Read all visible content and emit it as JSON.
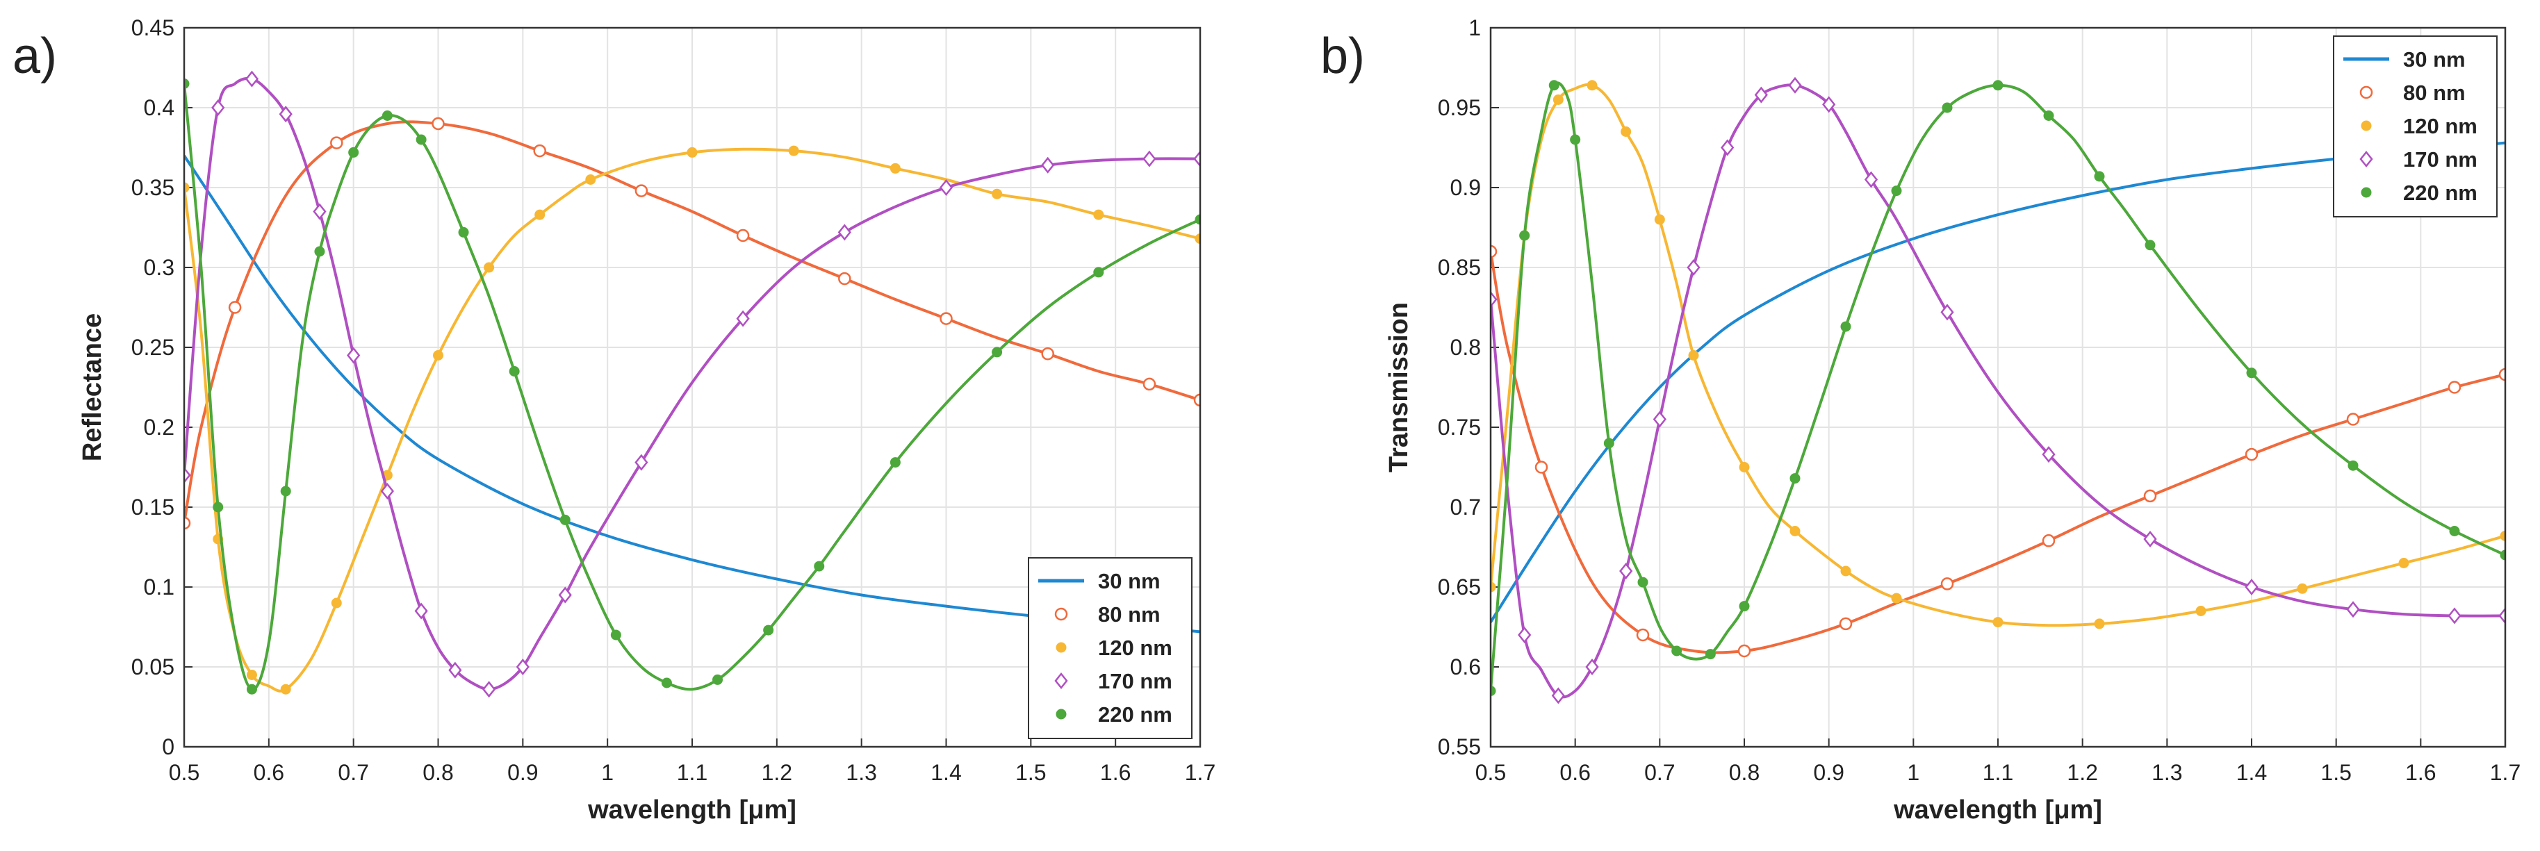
{
  "chart_data": [
    {
      "panel_label": "a)",
      "type": "line",
      "title": "",
      "xlabel": "wavelength [μm]",
      "ylabel": "Reflectance",
      "xlim": [
        0.5,
        1.7
      ],
      "ylim": [
        0,
        0.45
      ],
      "xticks": [
        "0.5",
        "0.6",
        "0.7",
        "0.8",
        "0.9",
        "1",
        "1.1",
        "1.2",
        "1.3",
        "1.4",
        "1.5",
        "1.6",
        "1.7"
      ],
      "yticks": [
        "0",
        "0.05",
        "0.1",
        "0.15",
        "0.2",
        "0.25",
        "0.3",
        "0.35",
        "0.4",
        "0.45"
      ],
      "grid": true,
      "legend_position": "bottom-right",
      "series": [
        {
          "name": "30 nm",
          "color": "#1e88d2",
          "marker": "none",
          "x": [
            0.5,
            0.55,
            0.6,
            0.65,
            0.7,
            0.75,
            0.8,
            0.9,
            1.0,
            1.1,
            1.2,
            1.3,
            1.4,
            1.5,
            1.6,
            1.7
          ],
          "y": [
            0.37,
            0.33,
            0.29,
            0.255,
            0.225,
            0.2,
            0.18,
            0.152,
            0.132,
            0.117,
            0.105,
            0.095,
            0.088,
            0.082,
            0.077,
            0.072
          ]
        },
        {
          "name": "80 nm",
          "color": "#f06a3c",
          "marker": "circle",
          "x": [
            0.5,
            0.52,
            0.56,
            0.62,
            0.68,
            0.74,
            0.8,
            0.86,
            0.92,
            0.98,
            1.04,
            1.1,
            1.16,
            1.22,
            1.28,
            1.34,
            1.4,
            1.46,
            1.52,
            1.58,
            1.64,
            1.7
          ],
          "y": [
            0.14,
            0.2,
            0.275,
            0.345,
            0.378,
            0.39,
            0.39,
            0.384,
            0.373,
            0.362,
            0.348,
            0.335,
            0.32,
            0.306,
            0.293,
            0.28,
            0.268,
            0.256,
            0.246,
            0.235,
            0.227,
            0.217
          ]
        },
        {
          "name": "120 nm",
          "color": "#f7b733",
          "marker": "dot",
          "x": [
            0.5,
            0.52,
            0.54,
            0.56,
            0.58,
            0.6,
            0.62,
            0.65,
            0.68,
            0.71,
            0.74,
            0.77,
            0.8,
            0.83,
            0.86,
            0.89,
            0.92,
            0.95,
            0.98,
            1.04,
            1.1,
            1.16,
            1.22,
            1.28,
            1.34,
            1.4,
            1.46,
            1.52,
            1.58,
            1.64,
            1.7
          ],
          "y": [
            0.35,
            0.26,
            0.13,
            0.07,
            0.045,
            0.038,
            0.036,
            0.055,
            0.09,
            0.13,
            0.17,
            0.21,
            0.245,
            0.275,
            0.3,
            0.32,
            0.333,
            0.345,
            0.355,
            0.366,
            0.372,
            0.374,
            0.373,
            0.369,
            0.362,
            0.355,
            0.346,
            0.341,
            0.333,
            0.326,
            0.318
          ]
        },
        {
          "name": "170 nm",
          "color": "#b04fc2",
          "marker": "diamond",
          "x": [
            0.5,
            0.52,
            0.54,
            0.56,
            0.58,
            0.6,
            0.62,
            0.64,
            0.66,
            0.68,
            0.7,
            0.72,
            0.74,
            0.76,
            0.78,
            0.8,
            0.82,
            0.84,
            0.86,
            0.88,
            0.9,
            0.92,
            0.95,
            0.98,
            1.04,
            1.1,
            1.16,
            1.22,
            1.28,
            1.34,
            1.4,
            1.46,
            1.52,
            1.58,
            1.64,
            1.7
          ],
          "y": [
            0.17,
            0.31,
            0.4,
            0.415,
            0.418,
            0.41,
            0.396,
            0.37,
            0.335,
            0.293,
            0.245,
            0.2,
            0.16,
            0.12,
            0.085,
            0.062,
            0.048,
            0.04,
            0.036,
            0.04,
            0.05,
            0.068,
            0.095,
            0.125,
            0.178,
            0.228,
            0.268,
            0.3,
            0.322,
            0.338,
            0.35,
            0.358,
            0.364,
            0.367,
            0.368,
            0.368
          ]
        },
        {
          "name": "220 nm",
          "color": "#4ca83a",
          "marker": "dot",
          "x": [
            0.5,
            0.52,
            0.54,
            0.56,
            0.58,
            0.6,
            0.62,
            0.64,
            0.66,
            0.68,
            0.7,
            0.72,
            0.74,
            0.76,
            0.78,
            0.8,
            0.83,
            0.86,
            0.89,
            0.92,
            0.95,
            0.98,
            1.01,
            1.04,
            1.07,
            1.1,
            1.13,
            1.16,
            1.19,
            1.22,
            1.25,
            1.28,
            1.34,
            1.4,
            1.46,
            1.52,
            1.58,
            1.64,
            1.7
          ],
          "y": [
            0.415,
            0.3,
            0.15,
            0.07,
            0.036,
            0.065,
            0.16,
            0.255,
            0.31,
            0.345,
            0.372,
            0.388,
            0.395,
            0.392,
            0.38,
            0.36,
            0.322,
            0.282,
            0.235,
            0.187,
            0.142,
            0.103,
            0.07,
            0.05,
            0.04,
            0.036,
            0.042,
            0.056,
            0.073,
            0.093,
            0.113,
            0.135,
            0.178,
            0.215,
            0.247,
            0.275,
            0.297,
            0.315,
            0.33
          ]
        }
      ]
    },
    {
      "panel_label": "b)",
      "type": "line",
      "title": "",
      "xlabel": "wavelength [μm]",
      "ylabel": "Transmission",
      "xlim": [
        0.5,
        1.7
      ],
      "ylim": [
        0.55,
        1
      ],
      "xticks": [
        "0.5",
        "0.6",
        "0.7",
        "0.8",
        "0.9",
        "1",
        "1.1",
        "1.2",
        "1.3",
        "1.4",
        "1.5",
        "1.6",
        "1.7"
      ],
      "yticks": [
        "0.55",
        "0.6",
        "0.65",
        "0.7",
        "0.75",
        "0.8",
        "0.85",
        "0.9",
        "0.95",
        "1"
      ],
      "grid": true,
      "legend_position": "top-right",
      "series": [
        {
          "name": "30 nm",
          "color": "#1e88d2",
          "marker": "none",
          "x": [
            0.5,
            0.55,
            0.6,
            0.65,
            0.7,
            0.75,
            0.8,
            0.9,
            1.0,
            1.1,
            1.2,
            1.3,
            1.4,
            1.5,
            1.6,
            1.7
          ],
          "y": [
            0.628,
            0.67,
            0.71,
            0.745,
            0.775,
            0.8,
            0.82,
            0.848,
            0.868,
            0.883,
            0.895,
            0.905,
            0.912,
            0.918,
            0.923,
            0.928
          ]
        },
        {
          "name": "80 nm",
          "color": "#f06a3c",
          "marker": "circle",
          "x": [
            0.5,
            0.52,
            0.56,
            0.62,
            0.68,
            0.74,
            0.8,
            0.86,
            0.92,
            0.98,
            1.04,
            1.1,
            1.16,
            1.22,
            1.28,
            1.34,
            1.4,
            1.46,
            1.52,
            1.58,
            1.64,
            1.7
          ],
          "y": [
            0.86,
            0.8,
            0.725,
            0.653,
            0.62,
            0.61,
            0.61,
            0.617,
            0.627,
            0.64,
            0.652,
            0.665,
            0.679,
            0.694,
            0.707,
            0.72,
            0.733,
            0.745,
            0.755,
            0.765,
            0.775,
            0.783
          ]
        },
        {
          "name": "120 nm",
          "color": "#f7b733",
          "marker": "dot",
          "x": [
            0.5,
            0.52,
            0.54,
            0.56,
            0.58,
            0.6,
            0.62,
            0.64,
            0.66,
            0.68,
            0.7,
            0.72,
            0.74,
            0.77,
            0.8,
            0.83,
            0.86,
            0.89,
            0.92,
            0.95,
            0.98,
            1.04,
            1.1,
            1.16,
            1.22,
            1.28,
            1.34,
            1.4,
            1.46,
            1.52,
            1.58,
            1.64,
            1.7
          ],
          "y": [
            0.65,
            0.76,
            0.87,
            0.93,
            0.955,
            0.962,
            0.964,
            0.955,
            0.935,
            0.915,
            0.88,
            0.84,
            0.795,
            0.755,
            0.725,
            0.7,
            0.685,
            0.672,
            0.66,
            0.65,
            0.643,
            0.634,
            0.628,
            0.626,
            0.627,
            0.63,
            0.635,
            0.641,
            0.649,
            0.657,
            0.665,
            0.673,
            0.682
          ]
        },
        {
          "name": "170 nm",
          "color": "#b04fc2",
          "marker": "diamond",
          "x": [
            0.5,
            0.52,
            0.54,
            0.56,
            0.58,
            0.6,
            0.62,
            0.64,
            0.66,
            0.68,
            0.7,
            0.72,
            0.74,
            0.76,
            0.78,
            0.8,
            0.82,
            0.84,
            0.86,
            0.88,
            0.9,
            0.92,
            0.95,
            0.98,
            1.04,
            1.1,
            1.16,
            1.22,
            1.28,
            1.34,
            1.4,
            1.46,
            1.52,
            1.58,
            1.64,
            1.7
          ],
          "y": [
            0.83,
            0.71,
            0.62,
            0.598,
            0.582,
            0.585,
            0.6,
            0.625,
            0.66,
            0.705,
            0.755,
            0.805,
            0.85,
            0.89,
            0.925,
            0.945,
            0.958,
            0.963,
            0.964,
            0.96,
            0.952,
            0.935,
            0.905,
            0.88,
            0.822,
            0.772,
            0.733,
            0.702,
            0.68,
            0.663,
            0.65,
            0.641,
            0.636,
            0.633,
            0.632,
            0.632
          ]
        },
        {
          "name": "220 nm",
          "color": "#4ca83a",
          "marker": "dot",
          "x": [
            0.5,
            0.52,
            0.54,
            0.56,
            0.575,
            0.59,
            0.6,
            0.62,
            0.64,
            0.66,
            0.68,
            0.7,
            0.72,
            0.74,
            0.76,
            0.78,
            0.8,
            0.83,
            0.86,
            0.89,
            0.92,
            0.95,
            0.98,
            1.01,
            1.04,
            1.07,
            1.1,
            1.13,
            1.16,
            1.19,
            1.22,
            1.25,
            1.28,
            1.34,
            1.4,
            1.46,
            1.52,
            1.58,
            1.64,
            1.7
          ],
          "y": [
            0.585,
            0.72,
            0.87,
            0.935,
            0.964,
            0.958,
            0.93,
            0.84,
            0.74,
            0.68,
            0.653,
            0.625,
            0.61,
            0.605,
            0.608,
            0.622,
            0.638,
            0.675,
            0.718,
            0.765,
            0.813,
            0.858,
            0.898,
            0.93,
            0.95,
            0.96,
            0.964,
            0.96,
            0.945,
            0.93,
            0.907,
            0.886,
            0.864,
            0.822,
            0.784,
            0.752,
            0.726,
            0.703,
            0.685,
            0.67
          ]
        }
      ]
    }
  ]
}
